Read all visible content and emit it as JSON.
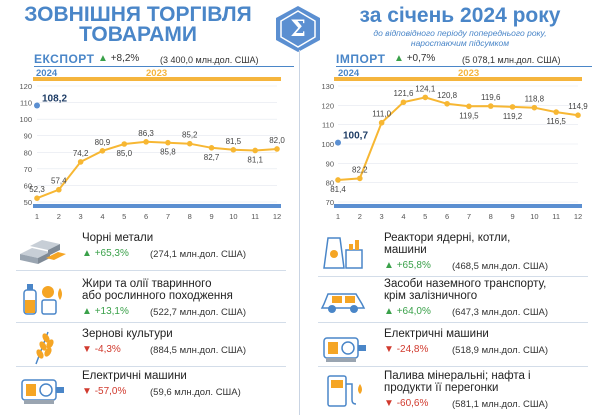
{
  "header": {
    "title_line1": "ЗОВНІШНЯ ТОРГІВЛЯ",
    "title_line2": "ТОВАРАМИ",
    "period_title": "за січень 2024 року",
    "subtitle_line1": "до відповідного періоду попереднього року,",
    "subtitle_line2": "наростаючим підсумком"
  },
  "export": {
    "title": "ЕКСПОРТ",
    "pct": "+8,2%",
    "amount": "(3 400,0 млн.дол. США)"
  },
  "import": {
    "title": "ІМПОРТ",
    "pct": "+0,7%",
    "amount": "(5 078,1 млн.дол. США)"
  },
  "colors": {
    "accent_blue": "#4a86c8",
    "line_orange": "#f7b733",
    "bar_orange": "#f5b53d",
    "bar_blue": "#5b8fd1",
    "up_green": "#3aa14a",
    "down_red": "#d13a2e"
  },
  "chart_data": [
    {
      "type": "line",
      "panel": "ЕКСПОРТ",
      "year_labels": {
        "a": "2024",
        "b": "2023"
      },
      "x": [
        1,
        2,
        3,
        4,
        5,
        6,
        7,
        8,
        9,
        10,
        11,
        12
      ],
      "values": [
        52.3,
        57.4,
        74.2,
        80.9,
        85.0,
        86.3,
        85.8,
        85.2,
        82.7,
        81.5,
        81.1,
        82.0
      ],
      "labels": [
        "52,3",
        "57,4",
        "74,2",
        "80,9",
        "85,0",
        "86,3",
        "85,8",
        "85,2",
        "82,7",
        "81,5",
        "81,1",
        "82,0"
      ],
      "highlight": {
        "label": "108,2",
        "value": 108.2
      },
      "y_ticks": [
        "50",
        "60",
        "70",
        "80",
        "90",
        "100",
        "110",
        "120"
      ],
      "ylim": [
        50,
        120
      ],
      "x_ticks": [
        "1",
        "2",
        "3",
        "4",
        "5",
        "6",
        "7",
        "8",
        "9",
        "10",
        "11",
        "12"
      ]
    },
    {
      "type": "line",
      "panel": "ІМПОРТ",
      "year_labels": {
        "a": "2024",
        "b": "2023"
      },
      "x": [
        1,
        2,
        3,
        4,
        5,
        6,
        7,
        8,
        9,
        10,
        11,
        12
      ],
      "values": [
        81.4,
        82.2,
        111.0,
        121.6,
        124.1,
        120.8,
        119.5,
        119.6,
        119.2,
        118.8,
        116.5,
        114.9
      ],
      "labels": [
        "81,4",
        "82,2",
        "111,0",
        "121,6",
        "124,1",
        "120,8",
        "119,5",
        "119,6",
        "119,2",
        "118,8",
        "116,5",
        "114,9"
      ],
      "highlight": {
        "label": "100,7",
        "value": 100.7
      },
      "y_ticks": [
        "70",
        "80",
        "90",
        "100",
        "110",
        "120",
        "130"
      ],
      "ylim": [
        70,
        130
      ],
      "x_ticks": [
        "1",
        "2",
        "3",
        "4",
        "5",
        "6",
        "7",
        "8",
        "9",
        "10",
        "11",
        "12"
      ]
    }
  ],
  "export_items": [
    {
      "name_line1": "Чорні метали",
      "name_line2": "",
      "change": "+65,3%",
      "dir": "up",
      "amount": "(274,1 млн.дол. США)",
      "icon": "metal-bars-icon"
    },
    {
      "name_line1": "Жири та олії тваринного",
      "name_line2": "або рослинного походження",
      "change": "+13,1%",
      "dir": "up",
      "amount": "(522,7 млн.дол. США)",
      "icon": "oil-bottle-icon"
    },
    {
      "name_line1": "Зернові культури",
      "name_line2": "",
      "change": "-4,3%",
      "dir": "down",
      "amount": "(884,5 млн.дол. США)",
      "icon": "wheat-icon"
    },
    {
      "name_line1": "Електричні машини",
      "name_line2": "",
      "change": "-57,0%",
      "dir": "down",
      "amount": "(59,6 млн.дол. США)",
      "icon": "electric-machine-icon"
    }
  ],
  "import_items": [
    {
      "name_line1": "Реактори ядерні, котли,",
      "name_line2": "машини",
      "change": "+65,8%",
      "dir": "up",
      "amount": "(468,5 млн.дол. США)",
      "icon": "reactor-icon"
    },
    {
      "name_line1": "Засоби наземного транспорту,",
      "name_line2": "крім залізничного",
      "change": "+64,0%",
      "dir": "up",
      "amount": "(647,3 млн.дол. США)",
      "icon": "car-icon"
    },
    {
      "name_line1": "Електричні машини",
      "name_line2": "",
      "change": "-24,8%",
      "dir": "down",
      "amount": "(518,9 млн.дол. США)",
      "icon": "electric-machine-icon"
    },
    {
      "name_line1": "Палива мінеральні; нафта і",
      "name_line2": "продукти її перегонки",
      "change": "-60,6%",
      "dir": "down",
      "amount": "(581,1 млн.дол. США)",
      "icon": "fuel-pump-icon"
    }
  ]
}
